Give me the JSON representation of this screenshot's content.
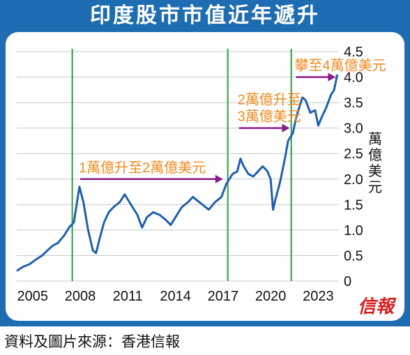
{
  "title": "印度股市市值近年遞升",
  "source": "資料及圖片來源：香港信報",
  "logo_text": "信報",
  "colors": {
    "frame": "#1e6db3",
    "line": "#1f5fad",
    "vline": "#2e9e3e",
    "arrow": "#8a1a8a",
    "annotation": "#f08a1e",
    "logo": "#d62020"
  },
  "chart_data": {
    "type": "line",
    "title": "印度股市市值近年遞升",
    "ylabel": "萬億美元",
    "xlim": [
      2004.0,
      2024.3
    ],
    "ylim": [
      0,
      4.5
    ],
    "yticks": [
      0,
      0.5,
      1.0,
      1.5,
      2.0,
      2.5,
      3.0,
      3.5,
      4.0,
      4.5
    ],
    "ytick_labels": [
      "0",
      "0.5",
      "1.0",
      "1.5",
      "2.0",
      "2.5",
      "3.0",
      "3.5",
      "4.0",
      "4.5"
    ],
    "xticks": [
      2005,
      2008,
      2011,
      2014,
      2017,
      2020,
      2023
    ],
    "xtick_labels": [
      "2005",
      "2008",
      "2011",
      "2014",
      "2017",
      "2020",
      "2023"
    ],
    "grid": true,
    "series": [
      {
        "x": [
          2004.0,
          2004.4,
          2004.8,
          2005.2,
          2005.6,
          2006.0,
          2006.3,
          2006.6,
          2007.0,
          2007.3,
          2007.6,
          2007.8,
          2007.95,
          2008.2,
          2008.5,
          2008.8,
          2009.0,
          2009.2,
          2009.5,
          2009.8,
          2010.1,
          2010.5,
          2010.8,
          2011.0,
          2011.3,
          2011.6,
          2011.9,
          2012.2,
          2012.6,
          2013.0,
          2013.4,
          2013.7,
          2014.0,
          2014.4,
          2014.8,
          2015.1,
          2015.5,
          2015.9,
          2016.1,
          2016.5,
          2016.9,
          2017.2,
          2017.6,
          2017.9,
          2018.1,
          2018.3,
          2018.6,
          2018.9,
          2019.2,
          2019.5,
          2019.8,
          2020.0,
          2020.15,
          2020.3,
          2020.6,
          2020.9,
          2021.1,
          2021.4,
          2021.6,
          2021.8,
          2022.0,
          2022.2,
          2022.5,
          2022.8,
          2023.0,
          2023.2,
          2023.5,
          2023.8,
          2024.0,
          2024.2
        ],
        "values": [
          0.2,
          0.28,
          0.33,
          0.42,
          0.5,
          0.62,
          0.7,
          0.75,
          0.9,
          1.05,
          1.15,
          1.55,
          1.85,
          1.55,
          1.0,
          0.6,
          0.55,
          0.8,
          1.15,
          1.35,
          1.45,
          1.55,
          1.7,
          1.6,
          1.45,
          1.3,
          1.05,
          1.25,
          1.35,
          1.3,
          1.2,
          1.1,
          1.25,
          1.45,
          1.55,
          1.65,
          1.55,
          1.45,
          1.4,
          1.55,
          1.65,
          1.9,
          2.1,
          2.15,
          2.4,
          2.25,
          2.1,
          2.05,
          2.15,
          2.25,
          2.15,
          2.0,
          1.4,
          1.6,
          1.95,
          2.4,
          2.75,
          2.9,
          3.2,
          3.4,
          3.6,
          3.55,
          3.3,
          3.35,
          3.05,
          3.2,
          3.4,
          3.65,
          3.75,
          4.05
        ]
      }
    ],
    "vlines": [
      2007.5,
      2017.3,
      2021.3
    ],
    "annotations": [
      {
        "text": "1萬億升至2萬億美元",
        "arrow_from": [
          2008.0,
          2.0
        ],
        "arrow_to": [
          2017.0,
          2.0
        ]
      },
      {
        "text": "2萬億升至",
        "text2": "3萬億美元",
        "arrow_from": [
          2018.0,
          3.0
        ],
        "arrow_to": [
          2021.2,
          3.0
        ]
      },
      {
        "text": "攀至4萬億美元",
        "arrow_from": [
          2021.6,
          4.0
        ],
        "arrow_to": [
          2024.1,
          4.0
        ]
      }
    ]
  }
}
